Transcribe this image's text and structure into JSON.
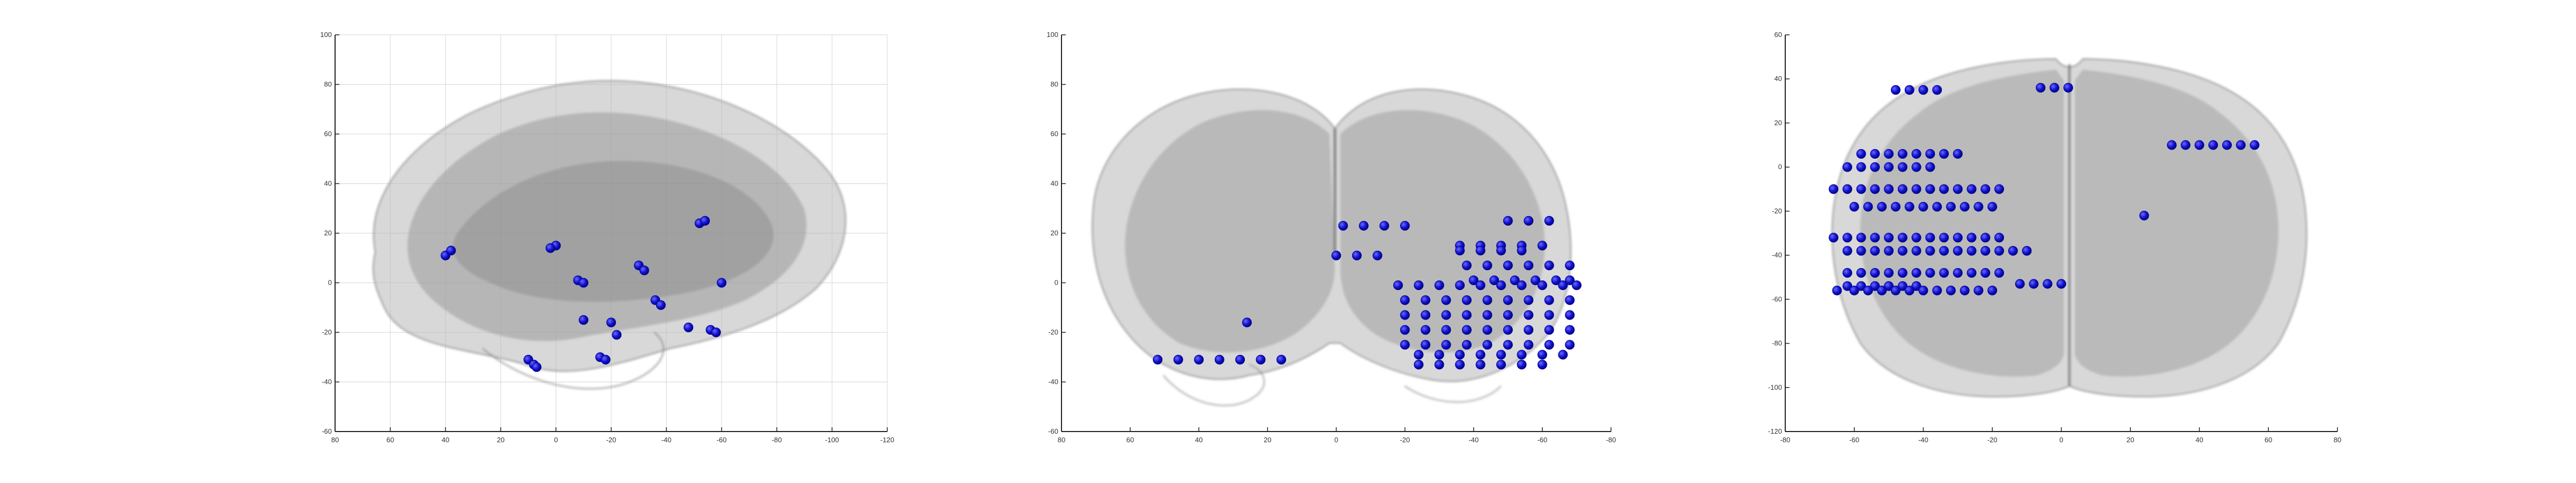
{
  "figure": {
    "background": "#ffffff",
    "brain_color": "#9e9e9e",
    "electrode_color": "#1010c8",
    "electrode_edge": "#00009a"
  },
  "panels": [
    {
      "view": "sagittal",
      "x_ticks": [
        "80",
        "60",
        "40",
        "20",
        "0",
        "-20",
        "-40",
        "-60",
        "-80",
        "-100",
        "-120"
      ],
      "y_ticks": [
        "100",
        "80",
        "60",
        "40",
        "20",
        "0",
        "-20",
        "-40",
        "-60"
      ],
      "grid": true
    },
    {
      "view": "coronal",
      "x_ticks": [
        "80",
        "60",
        "40",
        "20",
        "0",
        "-20",
        "-40",
        "-60",
        "-80"
      ],
      "y_ticks": [
        "100",
        "80",
        "60",
        "40",
        "20",
        "0",
        "-20",
        "-40",
        "-60"
      ],
      "grid": false
    },
    {
      "view": "axial",
      "x_ticks": [
        "-80",
        "-60",
        "-40",
        "-20",
        "0",
        "20",
        "40",
        "60",
        "80"
      ],
      "y_ticks": [
        "60",
        "40",
        "20",
        "0",
        "-20",
        "-40",
        "-60",
        "-80",
        "-100",
        "-120"
      ],
      "grid": false
    }
  ],
  "chart_data": [
    {
      "type": "scatter",
      "title": "",
      "xlabel": "",
      "ylabel": "",
      "xlim": [
        80,
        -120
      ],
      "ylim": [
        -60,
        100
      ],
      "grid": true,
      "x": [
        40,
        38,
        0,
        2,
        -8,
        -10,
        -10,
        -20,
        -22,
        -16,
        -18,
        -30,
        -32,
        -36,
        -38,
        -52,
        -54,
        -60,
        -48,
        -56,
        -58,
        10,
        8,
        7
      ],
      "y": [
        11,
        13,
        15,
        14,
        1,
        0,
        -15,
        -16,
        -21,
        -30,
        -31,
        7,
        5,
        -7,
        -9,
        24,
        25,
        0,
        -18,
        -19,
        -20,
        -31,
        -33,
        -34
      ]
    },
    {
      "type": "scatter",
      "title": "",
      "xlabel": "",
      "ylabel": "",
      "xlim": [
        80,
        -80
      ],
      "ylim": [
        -60,
        100
      ],
      "grid": false,
      "x": [
        -2,
        -8,
        -14,
        -20,
        0,
        -6,
        -12,
        -50,
        -56,
        -62,
        -36,
        -42,
        -48,
        -54,
        -60,
        -36,
        -42,
        -48,
        -54,
        -38,
        -44,
        -50,
        -56,
        -62,
        -68,
        -40,
        -46,
        -52,
        -58,
        -64,
        -68,
        -18,
        -24,
        -30,
        -36,
        -42,
        -48,
        -54,
        -60,
        -66,
        -70,
        -20,
        -26,
        -32,
        -38,
        -44,
        -50,
        -56,
        -62,
        -68,
        -20,
        -26,
        -32,
        -38,
        -44,
        -50,
        -56,
        -62,
        -68,
        -20,
        -26,
        -32,
        -38,
        -44,
        -50,
        -56,
        -62,
        -68,
        -20,
        -26,
        -32,
        -38,
        -44,
        -50,
        -56,
        -62,
        -68,
        -24,
        -30,
        -36,
        -42,
        -48,
        -54,
        -60,
        -66,
        -24,
        -30,
        -36,
        -42,
        -48,
        -54,
        -60,
        52,
        46,
        40,
        34,
        28,
        22,
        16,
        26
      ],
      "y": [
        23,
        23,
        23,
        23,
        11,
        11,
        11,
        25,
        25,
        25,
        15,
        15,
        15,
        15,
        15,
        13,
        13,
        13,
        13,
        7,
        7,
        7,
        7,
        7,
        7,
        1,
        1,
        1,
        1,
        1,
        1,
        -1,
        -1,
        -1,
        -1,
        -1,
        -1,
        -1,
        -1,
        -1,
        -1,
        -7,
        -7,
        -7,
        -7,
        -7,
        -7,
        -7,
        -7,
        -7,
        -13,
        -13,
        -13,
        -13,
        -13,
        -13,
        -13,
        -13,
        -13,
        -19,
        -19,
        -19,
        -19,
        -19,
        -19,
        -19,
        -19,
        -19,
        -25,
        -25,
        -25,
        -25,
        -25,
        -25,
        -25,
        -25,
        -25,
        -29,
        -29,
        -29,
        -29,
        -29,
        -29,
        -29,
        -29,
        -33,
        -33,
        -33,
        -33,
        -33,
        -33,
        -33,
        -31,
        -31,
        -31,
        -31,
        -31,
        -31,
        -31,
        -16
      ]
    },
    {
      "type": "scatter",
      "title": "",
      "xlabel": "",
      "ylabel": "",
      "xlim": [
        -80,
        80
      ],
      "ylim": [
        -120,
        60
      ],
      "grid": false,
      "x": [
        -48,
        -44,
        -40,
        -36,
        -6,
        -2,
        2,
        -58,
        -54,
        -50,
        -46,
        -42,
        -38,
        -34,
        -30,
        -62,
        -58,
        -54,
        -50,
        -46,
        -42,
        -38,
        -66,
        -62,
        -58,
        -54,
        -50,
        -46,
        -42,
        -38,
        -34,
        -30,
        -26,
        -22,
        -18,
        -60,
        -56,
        -52,
        -48,
        -44,
        -40,
        -36,
        -32,
        -28,
        -24,
        -20,
        -66,
        -62,
        -58,
        -54,
        -50,
        -46,
        -42,
        -38,
        -34,
        -30,
        -26,
        -22,
        -18,
        -62,
        -58,
        -54,
        -50,
        -46,
        -42,
        -38,
        -34,
        -30,
        -26,
        -22,
        -18,
        -14,
        -10,
        -62,
        -58,
        -54,
        -50,
        -46,
        -42,
        -38,
        -34,
        -30,
        -26,
        -22,
        -18,
        -62,
        -58,
        -54,
        -50,
        -46,
        -42,
        -65,
        -60,
        -56,
        -52,
        -48,
        -44,
        -40,
        -36,
        -32,
        -28,
        -24,
        -20,
        -12,
        -8,
        -4,
        0,
        32,
        36,
        40,
        44,
        48,
        52,
        56,
        24
      ],
      "y": [
        35,
        35,
        35,
        35,
        36,
        36,
        36,
        6,
        6,
        6,
        6,
        6,
        6,
        6,
        6,
        0,
        0,
        0,
        0,
        0,
        0,
        0,
        -10,
        -10,
        -10,
        -10,
        -10,
        -10,
        -10,
        -10,
        -10,
        -10,
        -10,
        -10,
        -10,
        -18,
        -18,
        -18,
        -18,
        -18,
        -18,
        -18,
        -18,
        -18,
        -18,
        -18,
        -32,
        -32,
        -32,
        -32,
        -32,
        -32,
        -32,
        -32,
        -32,
        -32,
        -32,
        -32,
        -32,
        -38,
        -38,
        -38,
        -38,
        -38,
        -38,
        -38,
        -38,
        -38,
        -38,
        -38,
        -38,
        -38,
        -38,
        -48,
        -48,
        -48,
        -48,
        -48,
        -48,
        -48,
        -48,
        -48,
        -48,
        -48,
        -48,
        -54,
        -54,
        -54,
        -54,
        -54,
        -54,
        -56,
        -56,
        -56,
        -56,
        -56,
        -56,
        -56,
        -56,
        -56,
        -56,
        -56,
        -56,
        -53,
        -53,
        -53,
        -53,
        10,
        10,
        10,
        10,
        10,
        10,
        10,
        -22
      ]
    }
  ]
}
